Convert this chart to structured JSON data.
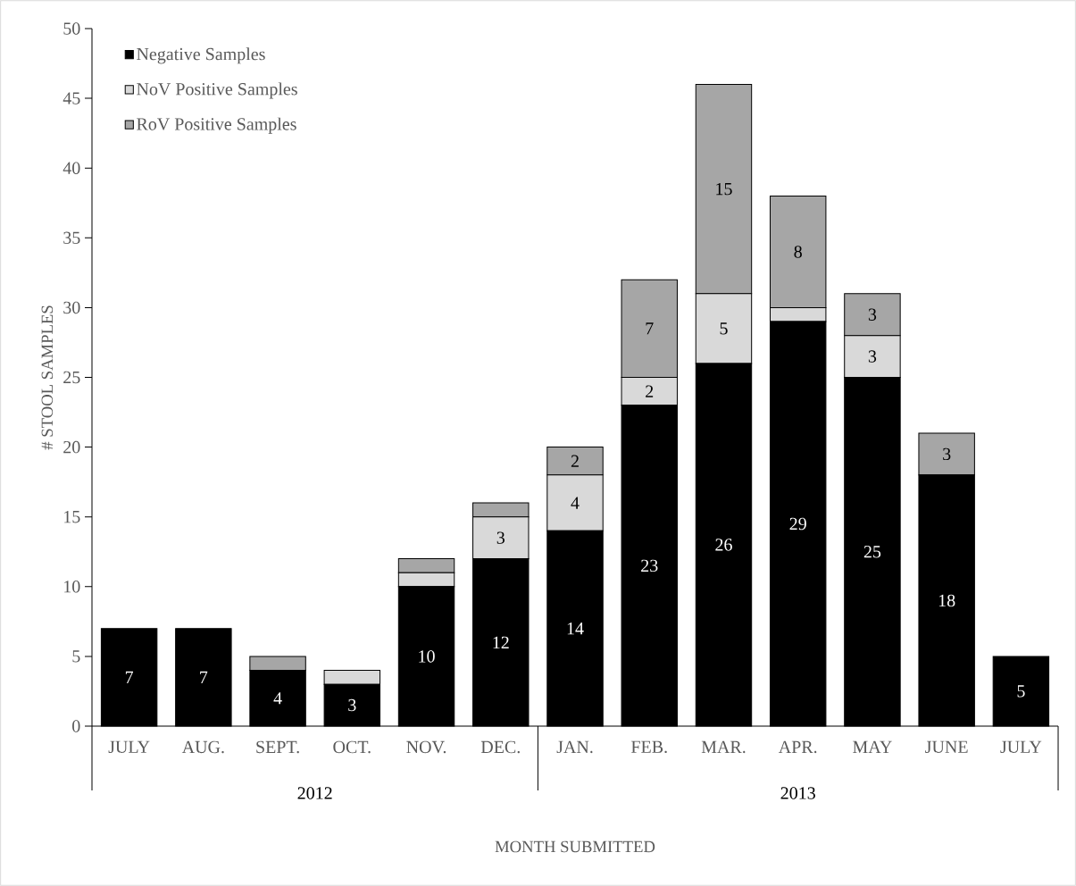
{
  "chart_data": {
    "type": "bar",
    "stacked": true,
    "ylabel": "# STOOL SAMPLES",
    "categories": [
      "JULY",
      "AUG.",
      "SEPT.",
      "OCT.",
      "NOV.",
      "DEC.",
      "JAN.",
      "FEB.",
      "MAR.",
      "APR.",
      "MAY",
      "JUNE",
      "JULY"
    ],
    "ylim": [
      0,
      50
    ],
    "yticks": [
      0,
      5,
      10,
      15,
      20,
      25,
      30,
      35,
      40,
      45,
      50
    ],
    "legend": "top left",
    "grid": false,
    "annotations": [
      "2012",
      "2013",
      "MONTH SUBMITTED"
    ],
    "series": [
      {
        "name": "Negative Samples",
        "color": "#000000",
        "values": [
          7,
          7,
          4,
          3,
          10,
          12,
          14,
          23,
          26,
          29,
          25,
          18,
          5
        ],
        "value_labels": [
          "7",
          "7",
          "4",
          "3",
          "10",
          "12",
          "14",
          "23",
          "26",
          "29",
          "25",
          "18",
          "5"
        ]
      },
      {
        "name": "NoV Positive Samples",
        "color": "#d9d9d9",
        "values": [
          0,
          0,
          0,
          1,
          1,
          3,
          4,
          2,
          5,
          1,
          3,
          0,
          0
        ],
        "value_labels": [
          null,
          null,
          null,
          null,
          null,
          "3",
          "4",
          "2",
          "5",
          null,
          "3",
          null,
          null
        ]
      },
      {
        "name": "RoV Positive Samples",
        "color": "#a6a6a6",
        "values": [
          0,
          0,
          1,
          0,
          1,
          1,
          2,
          7,
          15,
          8,
          3,
          3,
          0
        ],
        "value_labels": [
          null,
          null,
          null,
          null,
          null,
          null,
          "2",
          "7",
          "15",
          "8",
          "3",
          "3",
          null
        ]
      }
    ]
  }
}
